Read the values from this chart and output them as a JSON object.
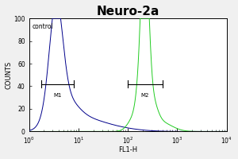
{
  "title": "Neuro-2a",
  "xlabel": "FL1-H",
  "ylabel": "COUNTS",
  "xlim_log": [
    0,
    4
  ],
  "ylim": [
    0,
    100
  ],
  "yticks": [
    0,
    20,
    40,
    60,
    80,
    100
  ],
  "ytick_labels": [
    "0",
    "20",
    "40",
    "60",
    "80",
    "100"
  ],
  "control_label": "control",
  "m1_label": "M1",
  "m2_label": "M2",
  "blue_color": "#00008B",
  "green_color": "#22CC22",
  "bg_color": "#f0f0f0",
  "plot_bg": "#ffffff",
  "title_fontsize": 11,
  "label_fontsize": 6,
  "tick_fontsize": 5.5
}
